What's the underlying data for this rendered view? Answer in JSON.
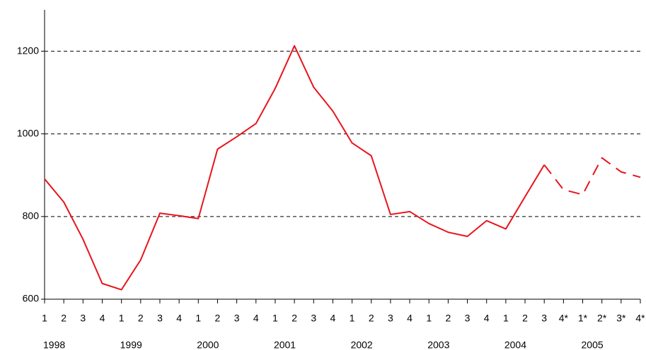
{
  "chart_data": {
    "type": "line",
    "categories": [
      "1",
      "2",
      "3",
      "4",
      "1",
      "2",
      "3",
      "4",
      "1",
      "2",
      "3",
      "4",
      "1",
      "2",
      "3",
      "4",
      "1",
      "2",
      "3",
      "4",
      "1",
      "2",
      "3",
      "4",
      "1",
      "2",
      "3",
      "4*",
      "1*",
      "2*",
      "3*",
      "4*"
    ],
    "years": [
      "1998",
      "1999",
      "2000",
      "2001",
      "2002",
      "2003",
      "2004",
      "2005"
    ],
    "series": [
      {
        "color": "#e8141c",
        "dashed": false,
        "values": [
          891,
          835,
          745,
          638,
          623,
          695,
          808,
          802,
          795,
          963,
          993,
          1025,
          1110,
          1213,
          1113,
          1055,
          978,
          947,
          805,
          812,
          783,
          762,
          752,
          790,
          770,
          848,
          925,
          null,
          null,
          null,
          null,
          null
        ]
      },
      {
        "color": "#e8141c",
        "dashed": true,
        "values": [
          null,
          null,
          null,
          null,
          null,
          null,
          null,
          null,
          null,
          null,
          null,
          null,
          null,
          null,
          null,
          null,
          null,
          null,
          null,
          null,
          null,
          null,
          null,
          null,
          null,
          null,
          925,
          865,
          853,
          942,
          908,
          895
        ]
      }
    ],
    "ylim": [
      600,
      1300
    ],
    "yticks": [
      600,
      800,
      1000,
      1200
    ],
    "grid": true
  }
}
